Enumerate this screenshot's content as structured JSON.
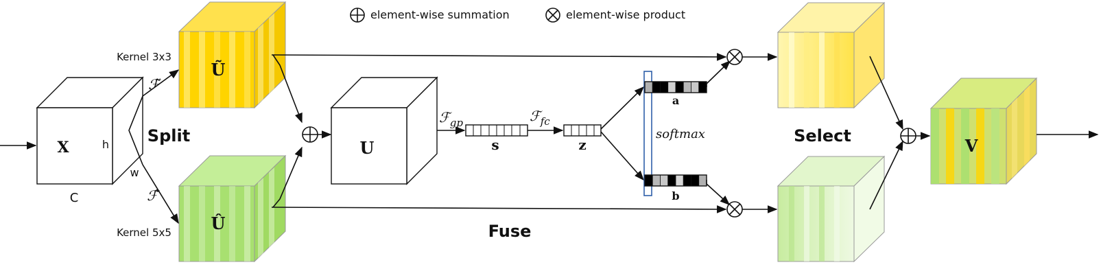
{
  "legend": {
    "sum_label": "element-wise summation",
    "product_label": "element-wise product"
  },
  "input": {
    "label": "X",
    "dim_h": "h",
    "dim_w": "w",
    "dim_c": "C"
  },
  "split": {
    "stage_label": "Split",
    "top_kernel": "Kernel 3x3",
    "bottom_kernel": "Kernel 5x5",
    "top_transform": "ℱ̃",
    "bottom_transform": "ℱ̂",
    "top_tensor": "Ũ",
    "bottom_tensor": "Û"
  },
  "fuse": {
    "stage_label": "Fuse",
    "fused_tensor": "U",
    "gp_label_base": "ℱ",
    "gp_label_sub": "gp",
    "s_label": "s",
    "fc_label_base": "ℱ",
    "fc_label_sub": "fc",
    "z_label": "z"
  },
  "select": {
    "stage_label": "Select",
    "softmax_label": "softmax",
    "a_label": "a",
    "b_label": "b",
    "a_cells": [
      "#b0b0b0",
      "#000000",
      "#000000",
      "#d0d0d0",
      "#000000",
      "#b8b8b8",
      "#c8c8c8",
      "#000000"
    ],
    "b_cells": [
      "#000000",
      "#b8b8b8",
      "#c8c8c8",
      "#000000",
      "#d8d8d8",
      "#000000",
      "#000000",
      "#b0b0b0"
    ],
    "output_label": "V"
  },
  "colors": {
    "yellow": "#ffd700",
    "green": "#a8e070",
    "softmax_border": "#2e5fa8"
  }
}
